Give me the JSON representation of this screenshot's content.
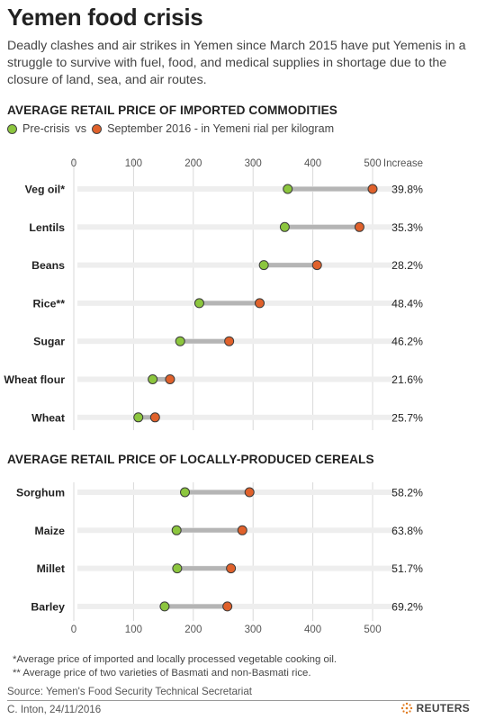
{
  "header": {
    "title": "Yemen food crisis",
    "subtitle": "Deadly clashes and air strikes in Yemen since March 2015 have put Yemenis in a struggle to survive with fuel, food, and medical supplies in shortage due to the closure of land, sea, and air routes."
  },
  "legend": {
    "pre_label": "Pre-crisis",
    "vs": "vs",
    "post_label": "September 2016 - in Yemeni rial per kilogram"
  },
  "colors": {
    "pre": "#8cc63e",
    "post": "#e0612b",
    "connector": "#b5b5b5",
    "track": "#eeeeee"
  },
  "increase_header": "Increase",
  "chart_data": [
    {
      "type": "dumbbell",
      "title": "AVERAGE RETAIL PRICE OF IMPORTED COMMODITIES",
      "xlim": [
        0,
        500
      ],
      "ticks": [
        "0",
        "100",
        "200",
        "300",
        "400",
        "500"
      ],
      "categories": [
        "Veg oil*",
        "Lentils",
        "Beans",
        "Rice**",
        "Sugar",
        "Wheat flour",
        "Wheat"
      ],
      "series": [
        {
          "name": "Pre-crisis",
          "values": [
            358,
            353,
            318,
            210,
            178,
            132,
            108
          ]
        },
        {
          "name": "September 2016 - in Yemeni rial per kilogram",
          "values": [
            500,
            478,
            407,
            311,
            260,
            161,
            136
          ]
        }
      ],
      "increase": [
        "39.8%",
        "35.3%",
        "28.2%",
        "48.4%",
        "46.2%",
        "21.6%",
        "25.7%"
      ]
    },
    {
      "type": "dumbbell",
      "title": "AVERAGE RETAIL PRICE OF LOCALLY-PRODUCED CEREALS",
      "xlim": [
        0,
        500
      ],
      "ticks": [
        "0",
        "100",
        "200",
        "300",
        "400",
        "500"
      ],
      "categories": [
        "Sorghum",
        "Maize",
        "Millet",
        "Barley"
      ],
      "series": [
        {
          "name": "Pre-crisis",
          "values": [
            186,
            172,
            173,
            152
          ]
        },
        {
          "name": "September 2016 - in Yemeni rial per kilogram",
          "values": [
            294,
            282,
            263,
            257
          ]
        }
      ],
      "increase": [
        "58.2%",
        "63.8%",
        "51.7%",
        "69.2%"
      ]
    }
  ],
  "footer": {
    "note1": "*Average price of imported and locally processed vegetable cooking oil.",
    "note2": "** Average price of two varieties of Basmati and non-Basmati rice.",
    "source": "Source: Yemen's Food Security Technical Secretariat",
    "credit": "C. Inton, 24/11/2016",
    "logo": "REUTERS"
  }
}
